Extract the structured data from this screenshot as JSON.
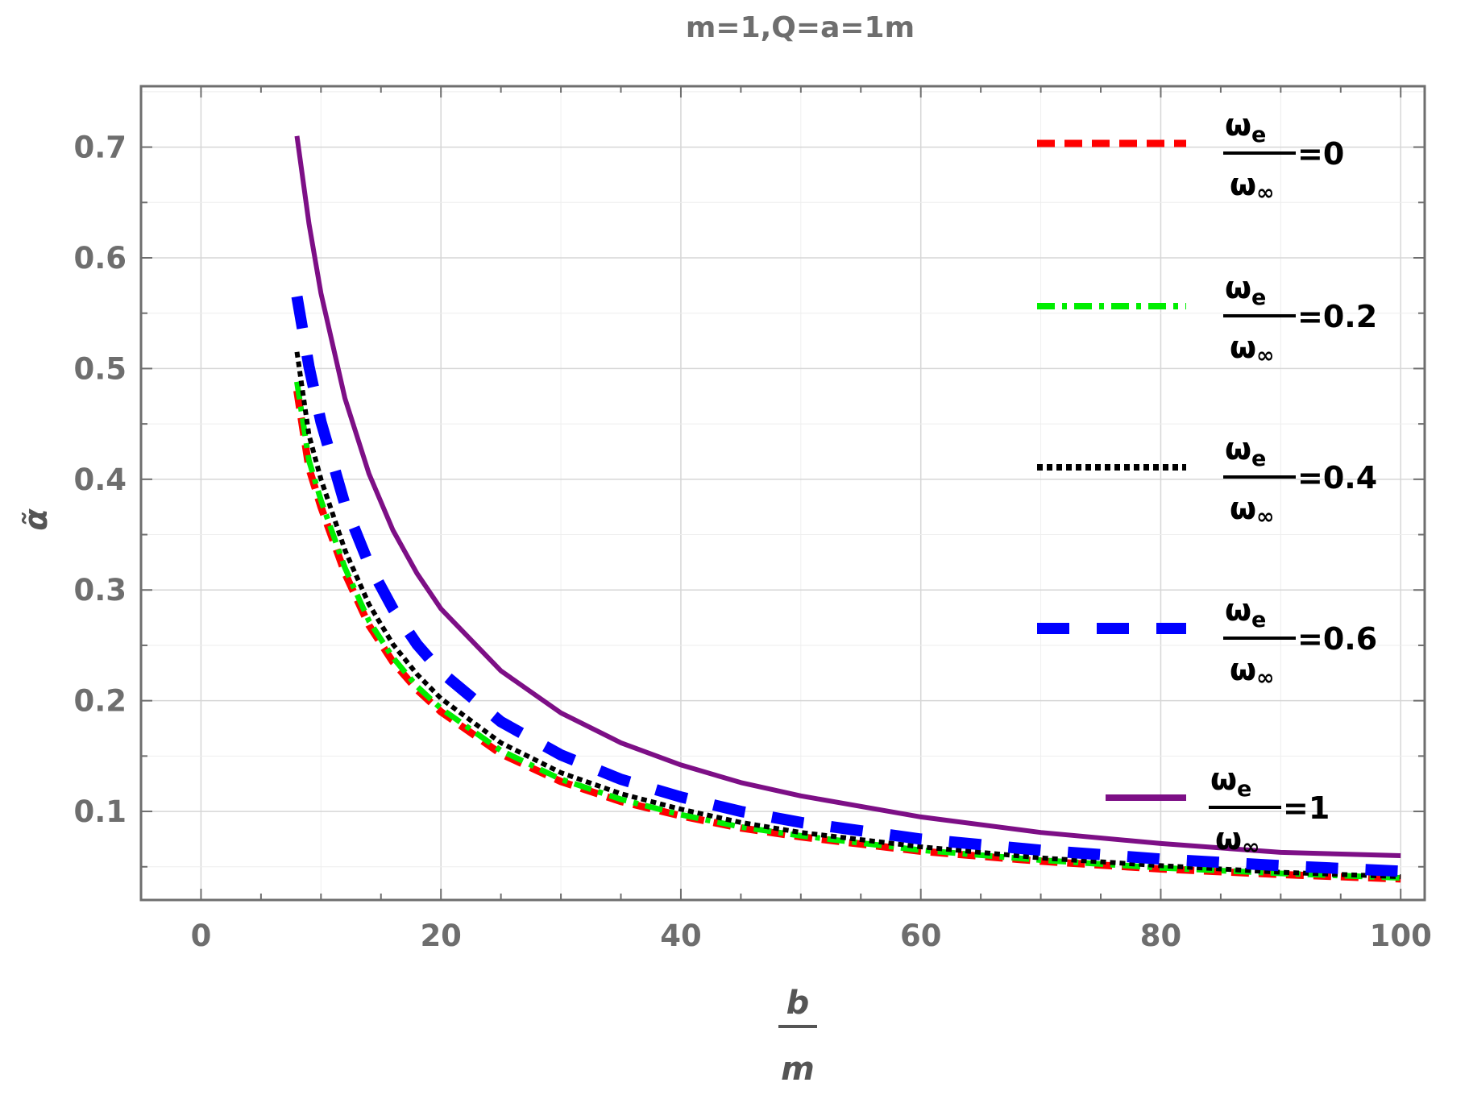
{
  "chart_data": {
    "type": "line",
    "title": "m=1,Q=a=1m",
    "xlabel": {
      "numerator": "b",
      "denominator": "m"
    },
    "ylabel": "α̃",
    "xlim": [
      -5,
      102
    ],
    "ylim": [
      0.02,
      0.755
    ],
    "xticks": [
      0,
      20,
      40,
      60,
      80,
      100
    ],
    "xtick_labels": [
      "0",
      "20",
      "40",
      "60",
      "80",
      "100"
    ],
    "yticks": [
      0.1,
      0.2,
      0.3,
      0.4,
      0.5,
      0.6,
      0.7
    ],
    "ytick_labels": [
      "0.1",
      "0.2",
      "0.3",
      "0.4",
      "0.5",
      "0.6",
      "0.7"
    ],
    "grid": true,
    "legend_position": "right",
    "x": [
      8,
      9,
      10,
      12,
      14,
      16,
      18,
      20,
      25,
      30,
      35,
      40,
      45,
      50,
      60,
      70,
      80,
      90,
      100
    ],
    "series": [
      {
        "name": "ωe/ω∞=0",
        "ratio_label": "=0",
        "color": "#ff0000",
        "style": "short-dash",
        "values": [
          0.48,
          0.41,
          0.375,
          0.315,
          0.268,
          0.235,
          0.21,
          0.19,
          0.152,
          0.127,
          0.109,
          0.096,
          0.085,
          0.077,
          0.064,
          0.055,
          0.048,
          0.043,
          0.039
        ]
      },
      {
        "name": "ωe/ω∞=0.2",
        "ratio_label": "=0.2",
        "color": "#00ee00",
        "style": "dash-dot",
        "values": [
          0.488,
          0.417,
          0.381,
          0.32,
          0.272,
          0.239,
          0.213,
          0.193,
          0.155,
          0.129,
          0.111,
          0.097,
          0.086,
          0.078,
          0.065,
          0.056,
          0.049,
          0.044,
          0.04
        ]
      },
      {
        "name": "ωe/ω∞=0.4",
        "ratio_label": "=0.4",
        "color": "#000000",
        "style": "dotted",
        "values": [
          0.515,
          0.44,
          0.4,
          0.336,
          0.287,
          0.251,
          0.224,
          0.202,
          0.162,
          0.135,
          0.116,
          0.102,
          0.09,
          0.081,
          0.068,
          0.058,
          0.051,
          0.045,
          0.041
        ]
      },
      {
        "name": "ωe/ω∞=0.6",
        "ratio_label": "=0.6",
        "color": "#0000ff",
        "style": "long-dash",
        "values": [
          0.565,
          0.502,
          0.452,
          0.377,
          0.323,
          0.283,
          0.251,
          0.226,
          0.181,
          0.151,
          0.129,
          0.113,
          0.1,
          0.09,
          0.075,
          0.065,
          0.057,
          0.051,
          0.046
        ]
      },
      {
        "name": "ωe/ω∞=1",
        "ratio_label": "=1",
        "color": "#7d0f86",
        "style": "solid",
        "values": [
          0.71,
          0.631,
          0.568,
          0.473,
          0.405,
          0.354,
          0.315,
          0.283,
          0.227,
          0.189,
          0.162,
          0.142,
          0.126,
          0.114,
          0.095,
          0.081,
          0.071,
          0.063,
          0.06
        ]
      }
    ]
  }
}
